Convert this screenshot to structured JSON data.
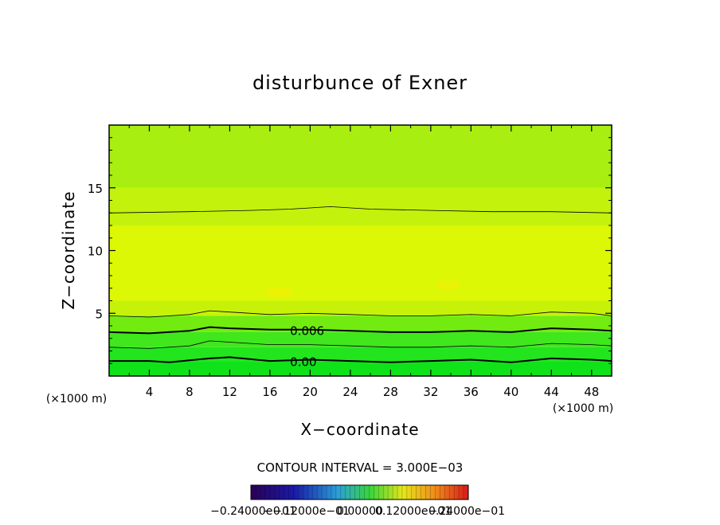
{
  "chart_data": {
    "type": "contour",
    "title": "disturbunce of Exner",
    "xlabel": "X−coordinate",
    "ylabel": "Z−coordinate",
    "x_unit_label": "(×1000 m)",
    "y_unit_label": "(×1000 m)",
    "xlim": [
      0,
      50
    ],
    "ylim": [
      0,
      20
    ],
    "xticks": [
      4,
      8,
      12,
      16,
      20,
      24,
      28,
      32,
      36,
      40,
      44,
      48
    ],
    "xtick_labels": [
      "4",
      "8",
      "12",
      "16",
      "20",
      "24",
      "28",
      "32",
      "36",
      "40",
      "44",
      "48"
    ],
    "yticks": [
      5,
      10,
      15
    ],
    "ytick_labels": [
      "5",
      "10",
      "15"
    ],
    "contour_interval_text": "CONTOUR INTERVAL = 3.000E−03",
    "contour_interval": 0.003,
    "labeled_contours": [
      {
        "label": "0.006",
        "value": 0.006,
        "x": 18,
        "z": 3.6
      },
      {
        "label": "0.00",
        "value": 0.0,
        "x": 18,
        "z": 1.1
      }
    ],
    "contour_lines": [
      {
        "bold": true,
        "points": [
          [
            0,
            1.2
          ],
          [
            4,
            1.2
          ],
          [
            6,
            1.1
          ],
          [
            10,
            1.4
          ],
          [
            12,
            1.5
          ],
          [
            16,
            1.2
          ],
          [
            20,
            1.3
          ],
          [
            24,
            1.2
          ],
          [
            28,
            1.1
          ],
          [
            32,
            1.2
          ],
          [
            36,
            1.3
          ],
          [
            40,
            1.1
          ],
          [
            44,
            1.4
          ],
          [
            48,
            1.3
          ],
          [
            50,
            1.2
          ]
        ]
      },
      {
        "bold": false,
        "points": [
          [
            0,
            2.3
          ],
          [
            4,
            2.2
          ],
          [
            8,
            2.4
          ],
          [
            10,
            2.8
          ],
          [
            12,
            2.7
          ],
          [
            16,
            2.5
          ],
          [
            20,
            2.5
          ],
          [
            24,
            2.4
          ],
          [
            28,
            2.3
          ],
          [
            32,
            2.3
          ],
          [
            36,
            2.4
          ],
          [
            40,
            2.3
          ],
          [
            44,
            2.6
          ],
          [
            48,
            2.5
          ],
          [
            50,
            2.4
          ]
        ]
      },
      {
        "bold": true,
        "points": [
          [
            0,
            3.5
          ],
          [
            4,
            3.4
          ],
          [
            8,
            3.6
          ],
          [
            10,
            3.9
          ],
          [
            12,
            3.8
          ],
          [
            16,
            3.7
          ],
          [
            20,
            3.7
          ],
          [
            24,
            3.6
          ],
          [
            28,
            3.5
          ],
          [
            32,
            3.5
          ],
          [
            36,
            3.6
          ],
          [
            40,
            3.5
          ],
          [
            44,
            3.8
          ],
          [
            48,
            3.7
          ],
          [
            50,
            3.6
          ]
        ]
      },
      {
        "bold": false,
        "points": [
          [
            0,
            4.8
          ],
          [
            4,
            4.7
          ],
          [
            8,
            4.9
          ],
          [
            10,
            5.2
          ],
          [
            12,
            5.1
          ],
          [
            16,
            4.9
          ],
          [
            20,
            5.0
          ],
          [
            24,
            4.9
          ],
          [
            28,
            4.8
          ],
          [
            32,
            4.8
          ],
          [
            36,
            4.9
          ],
          [
            40,
            4.8
          ],
          [
            44,
            5.1
          ],
          [
            48,
            5.0
          ],
          [
            50,
            4.8
          ]
        ]
      },
      {
        "bold": false,
        "points": [
          [
            0,
            13.0
          ],
          [
            8,
            13.1
          ],
          [
            14,
            13.2
          ],
          [
            18,
            13.3
          ],
          [
            22,
            13.5
          ],
          [
            26,
            13.3
          ],
          [
            32,
            13.2
          ],
          [
            38,
            13.1
          ],
          [
            44,
            13.1
          ],
          [
            50,
            13.0
          ]
        ]
      }
    ],
    "fill_bands": [
      {
        "z0": 0,
        "z1": 1.2,
        "color": "#10e21a"
      },
      {
        "z0": 1.2,
        "z1": 2.3,
        "color": "#22e51e"
      },
      {
        "z0": 2.3,
        "z1": 3.5,
        "color": "#3fe71c"
      },
      {
        "z0": 3.5,
        "z1": 4.8,
        "color": "#72eb10"
      },
      {
        "z0": 4.8,
        "z1": 6.0,
        "color": "#c6f20a"
      },
      {
        "z0": 6.0,
        "z1": 12.0,
        "color": "#dcf804"
      },
      {
        "z0": 12.0,
        "z1": 15.0,
        "color": "#c3f20c"
      },
      {
        "z0": 15.0,
        "z1": 20.0,
        "color": "#a8ee10"
      }
    ],
    "colorbar": {
      "tick_labels": [
        "−0.24000e−01",
        "−0.12000e−01",
        "0.00000",
        "0.12000e−01",
        "0.24000e−01"
      ]
    }
  }
}
